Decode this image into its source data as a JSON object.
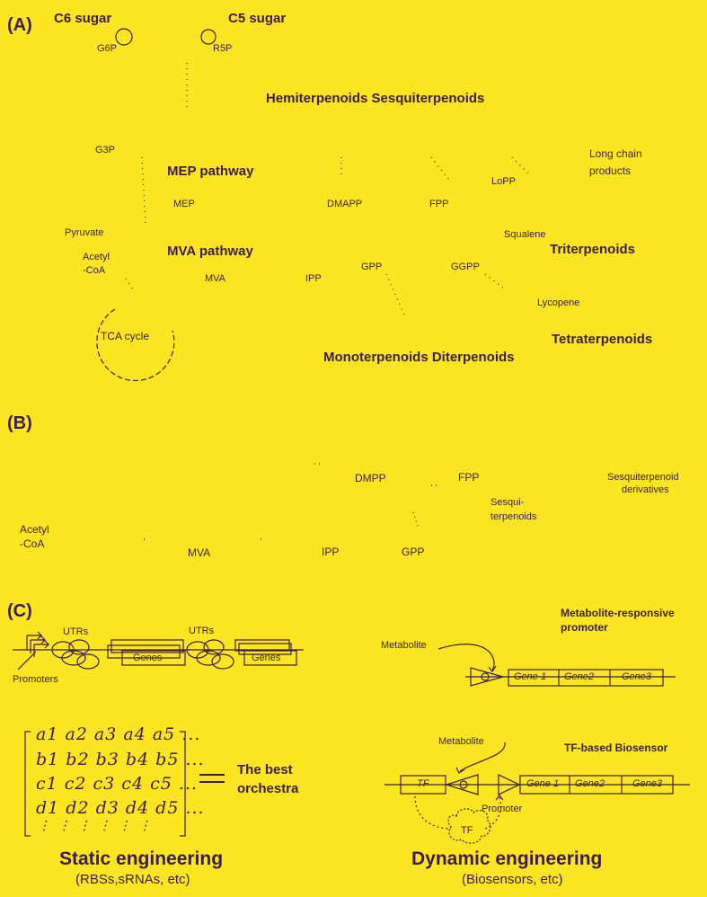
{
  "panel_a": {
    "label": "(A)",
    "c6_sugar": "C6 sugar",
    "c5_sugar": "C5 sugar",
    "g6p": "G6P",
    "r5p": "R5P",
    "hemi_sesqui": "Hemiterpenoids  Sesquiterpenoids",
    "g3p": "G3P",
    "mep_pathway": "MEP pathway",
    "mep": "MEP",
    "dmapp": "DMAPP",
    "fpp": "FPP",
    "lopp": "LoPP",
    "long_chain": "Long chain",
    "products": "products",
    "pyruvate": "Pyruvate",
    "squalene": "Squalene",
    "acetyl": "Acetyl",
    "coa": "-CoA",
    "mva_pathway": "MVA pathway",
    "triterpenoids": "Triterpenoids",
    "gpp": "GPP",
    "ggpp": "GGPP",
    "mva": "MVA",
    "ipp": "IPP",
    "lycopene": "Lycopene",
    "tca_cycle": "TCA cycle",
    "tetraterpenoids": "Tetraterpenoids",
    "mono_di": "Monoterpenoids  Diterpenoids"
  },
  "panel_b": {
    "label": "(B)",
    "dmpp": "DMPP",
    "fpp": "FPP",
    "sesqui_deriv_1": "Sesquiterpenoid",
    "sesqui_deriv_2": "derivatives",
    "sesqui_1": "Sesqui-",
    "sesqui_2": "terpenoids",
    "acetyl": "Acetyl",
    "coa": "-CoA",
    "mva": "MVA",
    "ipp": "IPP",
    "gpp": "GPP"
  },
  "panel_c": {
    "label": "(C)",
    "utrs_1": "UTRs",
    "utrs_2": "UTRs",
    "genes_1": "Genes",
    "genes_2": "Genes",
    "promoters": "Promoters",
    "metabolite_responsive_1": "Metabolite-responsive",
    "metabolite_responsive_2": "promoter",
    "metabolite_top": "Metabolite",
    "gene1_top": "Gene 1",
    "gene2_top": "Gene2",
    "gene3_top": "Gene3",
    "matrix_rows": [
      "a1 a2 a3 a4 a5 ...",
      "b1 b2 b3 b4 b5 ...",
      "c1 c2 c3 c4 c5 ...",
      "d1 d2 d3 d4 d5 ...",
      "⋮  ⋮  ⋮  ⋮  ⋮  ⋮"
    ],
    "the_best": "The best",
    "orchestra": "orchestra",
    "metabolite_bottom": "Metabolite",
    "tf_biosensor": "TF-based Biosensor",
    "tf_box": "TF",
    "gene1_bottom": "Gene 1",
    "gene2_bottom": "Gene2",
    "gene3_bottom": "Gene3",
    "promoter": "Promoter",
    "tf_cloud": "TF",
    "static_title": "Static engineering",
    "static_sub": "(RBSs,sRNAs, etc)",
    "dynamic_title": "Dynamic engineering",
    "dynamic_sub": "(Biosensors, etc)"
  },
  "colors": {
    "background": "#fce621",
    "ink": "#3a1c44"
  }
}
